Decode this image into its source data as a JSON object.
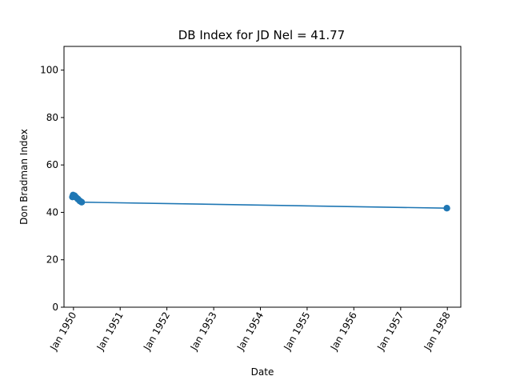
{
  "chart_data": {
    "type": "line",
    "title": "DB Index for JD Nel = 41.77",
    "xlabel": "Date",
    "ylabel": "Don Bradman Index",
    "ylim": [
      0,
      110
    ],
    "xlim": [
      "1949-10-19",
      "1958-04-16"
    ],
    "y_ticks": [
      0,
      20,
      40,
      60,
      80,
      100
    ],
    "x_ticks": [
      {
        "date": "1950-01-01",
        "label": "Jan 1950"
      },
      {
        "date": "1951-01-01",
        "label": "Jan 1951"
      },
      {
        "date": "1952-01-01",
        "label": "Jan 1952"
      },
      {
        "date": "1953-01-01",
        "label": "Jan 1953"
      },
      {
        "date": "1954-01-01",
        "label": "Jan 1954"
      },
      {
        "date": "1955-01-01",
        "label": "Jan 1955"
      },
      {
        "date": "1956-01-01",
        "label": "Jan 1956"
      },
      {
        "date": "1957-01-01",
        "label": "Jan 1957"
      },
      {
        "date": "1958-01-01",
        "label": "Jan 1958"
      }
    ],
    "series": [
      {
        "color": "#1f77b4",
        "points": [
          {
            "x": "1949-12-24",
            "y": 46.5
          },
          {
            "x": "1949-12-29",
            "y": 47.3
          },
          {
            "x": "1950-01-10",
            "y": 47.0
          },
          {
            "x": "1950-01-22",
            "y": 46.3
          },
          {
            "x": "1950-02-05",
            "y": 45.6
          },
          {
            "x": "1950-02-20",
            "y": 44.8
          },
          {
            "x": "1950-03-06",
            "y": 44.3
          },
          {
            "x": "1957-12-28",
            "y": 41.77
          }
        ]
      }
    ],
    "grid": false,
    "legend": "none"
  }
}
